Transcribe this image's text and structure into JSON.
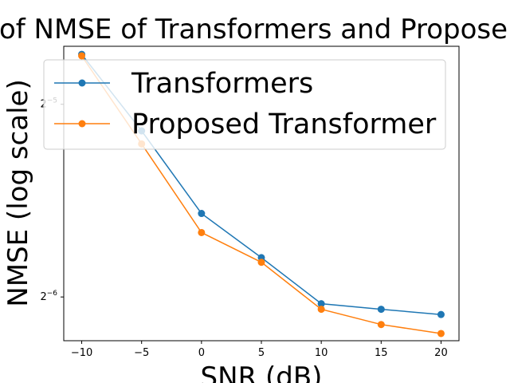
{
  "chart_data": {
    "type": "line",
    "title": "of NMSE of Transformers and Propose",
    "xlabel": "SNR (dB)",
    "ylabel": "NMSE (log scale)",
    "x": [
      -10,
      -5,
      0,
      5,
      10,
      15,
      20
    ],
    "xlim": [
      -11.5,
      21.5
    ],
    "xticks": [
      -10,
      -5,
      0,
      5,
      10,
      15,
      20
    ],
    "yscale": "log2",
    "ylim": [
      0.01335,
      0.0385
    ],
    "yticks": [
      {
        "value": 0.03125,
        "base": "2",
        "exp": "−5"
      },
      {
        "value": 0.015625,
        "base": "2",
        "exp": "−6"
      }
    ],
    "grid": false,
    "legend_position": "top",
    "series": [
      {
        "name": "Transformers",
        "color": "#1f77b4",
        "values": [
          0.0374,
          0.0284,
          0.0211,
          0.018,
          0.01525,
          0.01495,
          0.01467
        ]
      },
      {
        "name": "Proposed Transformer",
        "color": "#ff7f0e",
        "values": [
          0.0372,
          0.0271,
          0.0197,
          0.0177,
          0.01495,
          0.01415,
          0.0137
        ]
      }
    ]
  }
}
